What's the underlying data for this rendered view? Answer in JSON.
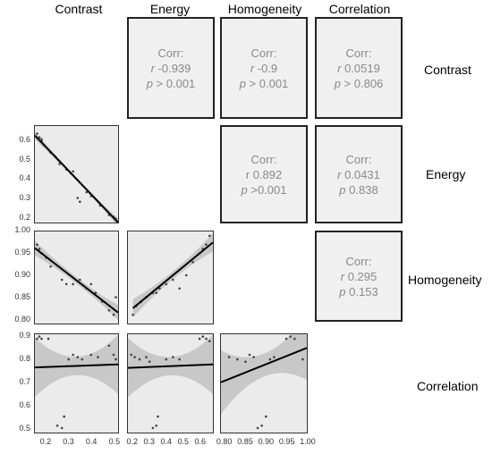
{
  "variables": [
    "Contrast",
    "Energy",
    "Homogeneity",
    "Correlation"
  ],
  "corr_title": "Corr:",
  "correlations": [
    {
      "row": 0,
      "col": 1,
      "r": "-0.939",
      "p": "> 0.001",
      "r_prefix": "r ",
      "p_prefix": "p "
    },
    {
      "row": 0,
      "col": 2,
      "r": "-0.9",
      "p": "> 0.001",
      "r_prefix": "r ",
      "p_prefix": "p "
    },
    {
      "row": 0,
      "col": 3,
      "r": "0.0519",
      "p": "> 0.806",
      "r_prefix": "r ",
      "p_prefix": "p "
    },
    {
      "row": 1,
      "col": 2,
      "r": "0.892",
      "p": ">0.001",
      "r_prefix": "r ",
      "p_prefix": "p "
    },
    {
      "row": 1,
      "col": 3,
      "r": "0.0431",
      "p": "0.838",
      "r_prefix": "r ",
      "p_prefix": "p "
    },
    {
      "row": 2,
      "col": 3,
      "r": "0.295",
      "p": "0.153",
      "r_prefix": "r ",
      "p_prefix": "p "
    }
  ],
  "colors": {
    "panel_bg": "#ebebeb",
    "band": "#c8c8c8",
    "line": "#000000",
    "point": "#444444",
    "text_gray": "#8a8a8a"
  },
  "chart_data": {
    "type": "scatter",
    "ranges": {
      "Contrast": [
        0.15,
        0.52
      ],
      "Energy": [
        0.17,
        0.68
      ],
      "Homogeneity": [
        0.79,
        1.0
      ],
      "Correlation": [
        0.48,
        0.91
      ]
    },
    "y_ticks": {
      "Energy": [
        "0.2",
        "0.3",
        "0.4",
        "0.5",
        "0.6"
      ],
      "Homogeneity": [
        "0.80",
        "0.85",
        "0.90",
        "0.95",
        "1.00"
      ],
      "Correlation": [
        "0.5",
        "0.6",
        "0.7",
        "0.8",
        "0.9"
      ]
    },
    "x_ticks": {
      "Contrast": [
        "0.2",
        "0.3",
        "0.4",
        "0.5"
      ],
      "Energy": [
        "0.2",
        "0.3",
        "0.4",
        "0.5",
        "0.6"
      ],
      "Homogeneity": [
        "0.80",
        "0.85",
        "0.90",
        "0.95",
        "1.00"
      ]
    },
    "panels": [
      {
        "x": "Contrast",
        "y": "Energy",
        "points": [
          [
            0.16,
            0.64
          ],
          [
            0.17,
            0.62
          ],
          [
            0.18,
            0.61
          ],
          [
            0.18,
            0.6
          ],
          [
            0.19,
            0.58
          ],
          [
            0.22,
            0.54
          ],
          [
            0.24,
            0.52
          ],
          [
            0.26,
            0.48
          ],
          [
            0.29,
            0.45
          ],
          [
            0.31,
            0.43
          ],
          [
            0.32,
            0.44
          ],
          [
            0.34,
            0.3
          ],
          [
            0.35,
            0.28
          ],
          [
            0.38,
            0.33
          ],
          [
            0.4,
            0.31
          ],
          [
            0.44,
            0.26
          ],
          [
            0.48,
            0.21
          ],
          [
            0.5,
            0.2
          ],
          [
            0.51,
            0.19
          ]
        ],
        "fit": [
          [
            0.15,
            0.63
          ],
          [
            0.52,
            0.17
          ]
        ],
        "band": 0.015
      },
      {
        "x": "Contrast",
        "y": "Homogeneity",
        "points": [
          [
            0.16,
            0.97
          ],
          [
            0.17,
            0.96
          ],
          [
            0.18,
            0.95
          ],
          [
            0.2,
            0.94
          ],
          [
            0.22,
            0.92
          ],
          [
            0.27,
            0.89
          ],
          [
            0.29,
            0.88
          ],
          [
            0.32,
            0.88
          ],
          [
            0.35,
            0.89
          ],
          [
            0.38,
            0.87
          ],
          [
            0.4,
            0.88
          ],
          [
            0.42,
            0.86
          ],
          [
            0.45,
            0.84
          ],
          [
            0.48,
            0.82
          ],
          [
            0.5,
            0.81
          ],
          [
            0.51,
            0.85
          ]
        ],
        "fit": [
          [
            0.15,
            0.962
          ],
          [
            0.52,
            0.815
          ]
        ],
        "band": 0.012
      },
      {
        "x": "Energy",
        "y": "Homogeneity",
        "points": [
          [
            0.2,
            0.81
          ],
          [
            0.22,
            0.83
          ],
          [
            0.25,
            0.84
          ],
          [
            0.28,
            0.85
          ],
          [
            0.32,
            0.86
          ],
          [
            0.34,
            0.86
          ],
          [
            0.36,
            0.87
          ],
          [
            0.4,
            0.88
          ],
          [
            0.44,
            0.89
          ],
          [
            0.48,
            0.87
          ],
          [
            0.52,
            0.9
          ],
          [
            0.56,
            0.93
          ],
          [
            0.6,
            0.95
          ],
          [
            0.62,
            0.96
          ],
          [
            0.64,
            0.97
          ],
          [
            0.66,
            0.99
          ]
        ],
        "fit": [
          [
            0.2,
            0.825
          ],
          [
            0.68,
            0.975
          ]
        ],
        "band": 0.015
      },
      {
        "x": "Contrast",
        "y": "Correlation",
        "points": [
          [
            0.16,
            0.89
          ],
          [
            0.17,
            0.9
          ],
          [
            0.18,
            0.89
          ],
          [
            0.21,
            0.89
          ],
          [
            0.25,
            0.51
          ],
          [
            0.27,
            0.5
          ],
          [
            0.28,
            0.55
          ],
          [
            0.3,
            0.8
          ],
          [
            0.32,
            0.82
          ],
          [
            0.34,
            0.81
          ],
          [
            0.36,
            0.8
          ],
          [
            0.4,
            0.82
          ],
          [
            0.43,
            0.81
          ],
          [
            0.48,
            0.86
          ],
          [
            0.5,
            0.82
          ],
          [
            0.51,
            0.8
          ]
        ],
        "fit": [
          [
            0.15,
            0.765
          ],
          [
            0.52,
            0.778
          ]
        ],
        "band_ends": 0.13,
        "band_mid": 0.04
      },
      {
        "x": "Energy",
        "y": "Correlation",
        "points": [
          [
            0.19,
            0.82
          ],
          [
            0.21,
            0.81
          ],
          [
            0.24,
            0.8
          ],
          [
            0.28,
            0.81
          ],
          [
            0.3,
            0.79
          ],
          [
            0.32,
            0.5
          ],
          [
            0.34,
            0.51
          ],
          [
            0.35,
            0.55
          ],
          [
            0.4,
            0.8
          ],
          [
            0.44,
            0.81
          ],
          [
            0.48,
            0.8
          ],
          [
            0.6,
            0.89
          ],
          [
            0.62,
            0.9
          ],
          [
            0.64,
            0.89
          ],
          [
            0.66,
            0.88
          ]
        ],
        "fit": [
          [
            0.17,
            0.763
          ],
          [
            0.68,
            0.778
          ]
        ],
        "band_ends": 0.13,
        "band_mid": 0.04
      },
      {
        "x": "Homogeneity",
        "y": "Correlation",
        "points": [
          [
            0.81,
            0.81
          ],
          [
            0.83,
            0.8
          ],
          [
            0.85,
            0.79
          ],
          [
            0.86,
            0.82
          ],
          [
            0.87,
            0.81
          ],
          [
            0.88,
            0.5
          ],
          [
            0.89,
            0.51
          ],
          [
            0.9,
            0.55
          ],
          [
            0.91,
            0.8
          ],
          [
            0.92,
            0.81
          ],
          [
            0.95,
            0.89
          ],
          [
            0.96,
            0.9
          ],
          [
            0.97,
            0.89
          ],
          [
            0.99,
            0.8
          ]
        ],
        "fit": [
          [
            0.79,
            0.7
          ],
          [
            1.0,
            0.85
          ]
        ],
        "band_ends": 0.14,
        "band_mid": 0.05
      }
    ]
  }
}
